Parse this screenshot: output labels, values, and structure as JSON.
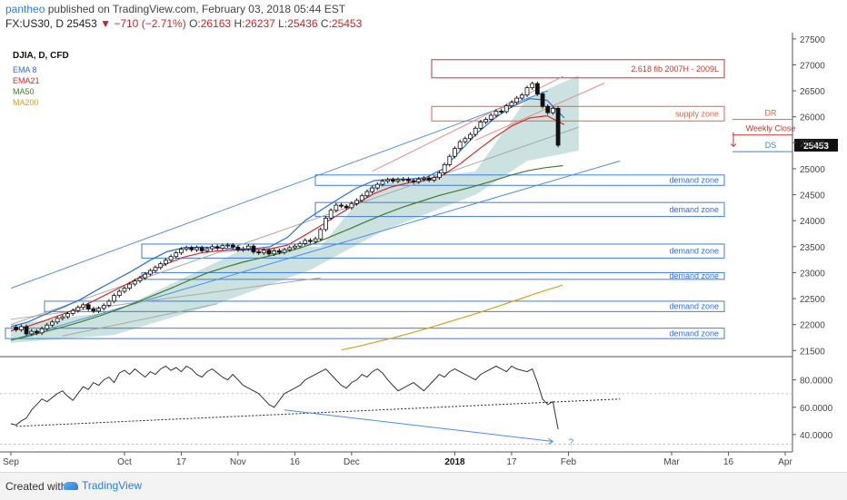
{
  "header": {
    "user": "pantheo",
    "published": "published on TradingView.com, February 03, 2018 05:44 EST",
    "symbol": "FX:US30, D",
    "last": "25453",
    "change": "−710 (−2.71%)",
    "o_label": "O:",
    "o": "26163",
    "h_label": "H:",
    "h": "26237",
    "l_label": "L:",
    "l": "25436",
    "c_label": "C:",
    "c": "25453"
  },
  "footer": {
    "created": "Created with",
    "brand": "TradingView"
  },
  "colors": {
    "ema8": "#2a6fd6",
    "ema21": "#d62b2b",
    "ma50": "#3f7d2a",
    "ma200": "#d6a21f",
    "zone": "#3b7fd6",
    "zone_text": "#2a6fd6",
    "supply": "#e0663a",
    "fib": "#c0392b",
    "cloud": "#b9d8d5",
    "rsi": "#333333"
  },
  "chart_data": {
    "type": "candlestick",
    "title": "DJIA, D, CFD",
    "legend": [
      {
        "name": "EMA 8",
        "color": "#2a6fd6"
      },
      {
        "name": "EMA21",
        "color": "#d62b2b"
      },
      {
        "name": "MA50",
        "color": "#3f7d2a"
      },
      {
        "name": "MA200",
        "color": "#d6a21f"
      }
    ],
    "price_axis": {
      "min": 21400,
      "max": 27550,
      "ticks": [
        21500,
        22000,
        22500,
        23000,
        23500,
        24000,
        24500,
        25000,
        25500,
        26000,
        26500,
        27000,
        27500
      ],
      "last_value": 25453
    },
    "time_axis": {
      "ticks": [
        {
          "label": "Sep",
          "x_index": 0
        },
        {
          "label": "Oct",
          "x_index": 22
        },
        {
          "label": "17",
          "x_index": 33
        },
        {
          "label": "Nov",
          "x_index": 44
        },
        {
          "label": "16",
          "x_index": 55
        },
        {
          "label": "Dec",
          "x_index": 66
        },
        {
          "label": "2018",
          "x_index": 86
        },
        {
          "label": "17",
          "x_index": 97
        },
        {
          "label": "Feb",
          "x_index": 108
        },
        {
          "label": "Mar",
          "x_index": 128
        },
        {
          "label": "16",
          "x_index": 139
        },
        {
          "label": "Apr",
          "x_index": 150
        }
      ]
    },
    "closes": [
      21950,
      21900,
      21960,
      21820,
      21870,
      21840,
      21920,
      21990,
      22050,
      22120,
      22150,
      22210,
      22270,
      22330,
      22380,
      22300,
      22260,
      22310,
      22370,
      22450,
      22560,
      22640,
      22700,
      22780,
      22840,
      22900,
      22970,
      23040,
      23100,
      23170,
      23240,
      23310,
      23380,
      23450,
      23480,
      23440,
      23480,
      23420,
      23460,
      23500,
      23470,
      23520,
      23530,
      23490,
      23440,
      23460,
      23510,
      23400,
      23380,
      23430,
      23360,
      23420,
      23390,
      23440,
      23480,
      23510,
      23560,
      23620,
      23600,
      23650,
      23830,
      24050,
      24200,
      24300,
      24280,
      24250,
      24330,
      24390,
      24480,
      24560,
      24630,
      24700,
      24760,
      24790,
      24760,
      24790,
      24800,
      24770,
      24750,
      24800,
      24820,
      24780,
      24830,
      24920,
      25080,
      25240,
      25390,
      25520,
      25580,
      25660,
      25780,
      25900,
      25950,
      26030,
      26110,
      26100,
      26210,
      26280,
      26360,
      26420,
      26560,
      26640,
      26440,
      26200,
      26080,
      26163,
      25453
    ],
    "ema8": [
      21960,
      22050,
      22200,
      22330,
      22480,
      22670,
      22850,
      23030,
      23230,
      23400,
      23480,
      23490,
      23480,
      23450,
      23460,
      23500,
      23680,
      24000,
      24220,
      24430,
      24630,
      24770,
      24800,
      24800,
      24830,
      25000,
      25350,
      25700,
      25980,
      26200,
      26350,
      26320,
      25980
    ],
    "ema21": [
      21880,
      21970,
      22080,
      22200,
      22330,
      22490,
      22660,
      22830,
      23010,
      23170,
      23300,
      23380,
      23420,
      23430,
      23440,
      23460,
      23530,
      23720,
      23920,
      24130,
      24330,
      24520,
      24650,
      24730,
      24780,
      24880,
      25100,
      25360,
      25610,
      25830,
      25980,
      26020,
      25850
    ],
    "ma50": [
      21700,
      21780,
      21870,
      21960,
      22060,
      22170,
      22290,
      22420,
      22560,
      22700,
      22850,
      22990,
      23100,
      23200,
      23280,
      23360,
      23450,
      23560,
      23700,
      23840,
      23990,
      24130,
      24260,
      24370,
      24480,
      24570,
      24660,
      24760,
      24870,
      24960,
      25020,
      25060
    ],
    "ma200": [
      21510,
      21580,
      21660,
      21740,
      21830,
      21920,
      22020,
      22120,
      22220,
      22330,
      22440,
      22550,
      22660,
      22760
    ],
    "rsi": {
      "ticks": [
        40,
        60,
        80
      ],
      "tick_labels": [
        "40.0000",
        "60.0000",
        "80.0000"
      ],
      "values": [
        48,
        47,
        50,
        52,
        58,
        62,
        66,
        64,
        67,
        70,
        72,
        68,
        65,
        70,
        75,
        73,
        78,
        76,
        80,
        82,
        78,
        85,
        87,
        84,
        88,
        85,
        82,
        86,
        84,
        88,
        90,
        87,
        89,
        86,
        90,
        88,
        84,
        82,
        86,
        88,
        85,
        82,
        80,
        84,
        80,
        76,
        74,
        72,
        70,
        66,
        62,
        60,
        65,
        70,
        72,
        74,
        76,
        80,
        82,
        84,
        86,
        88,
        84,
        80,
        76,
        74,
        78,
        80,
        84,
        82,
        86,
        88,
        85,
        80,
        76,
        72,
        74,
        76,
        78,
        75,
        72,
        76,
        80,
        84,
        82,
        86,
        88,
        86,
        84,
        82,
        80,
        84,
        86,
        88,
        90,
        88,
        86,
        90,
        88,
        87,
        86,
        88,
        78,
        66,
        62,
        64,
        44
      ]
    },
    "zones": [
      {
        "label": "2.618 fib 2007H - 2009L",
        "top": 27100,
        "bottom": 26750
      },
      {
        "label": "supply zone",
        "top": 26200,
        "bottom": 25920
      },
      {
        "label": "demand zone",
        "top": 24880,
        "bottom": 24680
      },
      {
        "label": "demand zone",
        "top": 24350,
        "bottom": 24080
      },
      {
        "label": "demand zone",
        "top": 23550,
        "bottom": 23280
      },
      {
        "label": "demand zone",
        "top": 23000,
        "bottom": 22870
      },
      {
        "label": "demand zone",
        "top": 22450,
        "bottom": 22250
      },
      {
        "label": "demand zone",
        "top": 21930,
        "bottom": 21730
      }
    ],
    "levels": [
      {
        "label": "DR",
        "value": 25950
      },
      {
        "label": "Weekly Close",
        "value": 25650
      },
      {
        "label": "DS",
        "value": 25330
      }
    ],
    "divergence_label": "?"
  }
}
